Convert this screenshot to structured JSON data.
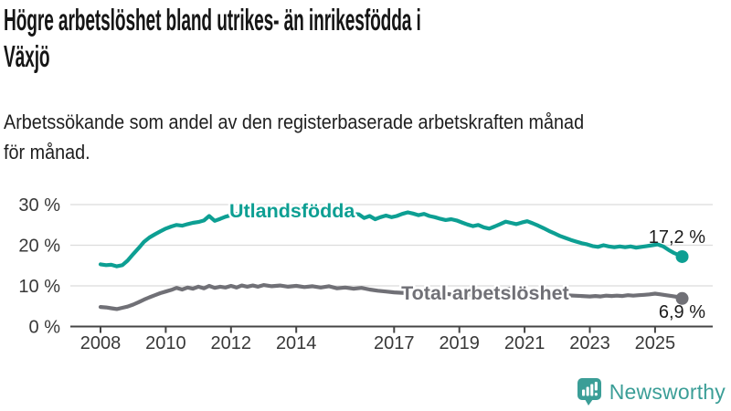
{
  "header": {
    "title_lines": [
      "Högre arbetslöshet bland utrikes- än inrikesfödda i",
      "Växjö"
    ],
    "subtitle_lines": [
      "Arbetssökande som andel av den registerbaserade arbetskraften månad",
      "för månad."
    ]
  },
  "colors": {
    "accent_teal": "#0d9f93",
    "line_gray": "#707076",
    "grid": "#dcdcdc",
    "axis": "#444444",
    "tick_text": "#383838",
    "end_label_text": "#1c1c1c",
    "logo_teal": "#3b9e97"
  },
  "chart_data": {
    "type": "line",
    "title": "Högre arbetslöshet bland utrikes- än inrikesfödda i Växjö",
    "subtitle": "Arbetssökande som andel av den registerbaserade arbetskraften månad för månad.",
    "xlabel": "",
    "ylabel": "",
    "units": "%",
    "grid": true,
    "ylim": [
      0,
      30
    ],
    "xlim": [
      2008,
      2025.83
    ],
    "x_ticks": [
      2008,
      2010,
      2012,
      2014,
      2017,
      2019,
      2021,
      2023,
      2025
    ],
    "y_ticks": [
      {
        "value": 0,
        "label": "0 %"
      },
      {
        "value": 10,
        "label": "10 %"
      },
      {
        "value": 20,
        "label": "20 %"
      },
      {
        "value": 30,
        "label": "30 %"
      }
    ],
    "series": [
      {
        "name": "Utlandsfödda",
        "color": "#0d9f93",
        "end_value": 17.2,
        "end_label": "17,2 %",
        "end_label_position": "above",
        "label_at": [
          2011.95,
          28.4
        ],
        "points": [
          [
            2008.0,
            15.3
          ],
          [
            2008.17,
            15.1
          ],
          [
            2008.33,
            15.2
          ],
          [
            2008.5,
            14.8
          ],
          [
            2008.67,
            15.1
          ],
          [
            2008.83,
            16.2
          ],
          [
            2009.0,
            17.8
          ],
          [
            2009.17,
            19.3
          ],
          [
            2009.33,
            20.8
          ],
          [
            2009.5,
            21.9
          ],
          [
            2009.67,
            22.7
          ],
          [
            2009.83,
            23.4
          ],
          [
            2010.0,
            24.1
          ],
          [
            2010.17,
            24.6
          ],
          [
            2010.33,
            25.0
          ],
          [
            2010.5,
            24.8
          ],
          [
            2010.67,
            25.2
          ],
          [
            2010.83,
            25.5
          ],
          [
            2011.0,
            25.7
          ],
          [
            2011.17,
            26.1
          ],
          [
            2011.33,
            27.2
          ],
          [
            2011.5,
            26.0
          ],
          [
            2011.67,
            26.5
          ],
          [
            2011.83,
            27.0
          ],
          [
            2012.0,
            27.4
          ],
          [
            2012.25,
            27.8
          ],
          [
            2012.5,
            27.6
          ],
          [
            2012.75,
            27.9
          ],
          [
            2013.0,
            28.0
          ],
          [
            2013.25,
            27.6
          ],
          [
            2013.5,
            27.9
          ],
          [
            2013.75,
            27.7
          ],
          [
            2014.0,
            28.0
          ],
          [
            2014.25,
            27.7
          ],
          [
            2014.5,
            27.9
          ],
          [
            2014.75,
            27.6
          ],
          [
            2015.0,
            27.9
          ],
          [
            2015.25,
            27.6
          ],
          [
            2015.5,
            27.8
          ],
          [
            2015.75,
            27.7
          ],
          [
            2015.92,
            27.6
          ],
          [
            2016.08,
            26.7
          ],
          [
            2016.25,
            27.2
          ],
          [
            2016.42,
            26.4
          ],
          [
            2016.58,
            26.9
          ],
          [
            2016.75,
            27.3
          ],
          [
            2016.92,
            26.9
          ],
          [
            2017.08,
            27.2
          ],
          [
            2017.25,
            27.7
          ],
          [
            2017.42,
            28.1
          ],
          [
            2017.58,
            27.8
          ],
          [
            2017.75,
            27.4
          ],
          [
            2017.92,
            27.7
          ],
          [
            2018.08,
            27.2
          ],
          [
            2018.25,
            26.9
          ],
          [
            2018.42,
            26.5
          ],
          [
            2018.58,
            26.2
          ],
          [
            2018.75,
            26.4
          ],
          [
            2018.92,
            26.1
          ],
          [
            2019.08,
            25.6
          ],
          [
            2019.25,
            25.1
          ],
          [
            2019.42,
            24.7
          ],
          [
            2019.58,
            25.0
          ],
          [
            2019.75,
            24.4
          ],
          [
            2019.92,
            24.1
          ],
          [
            2020.08,
            24.6
          ],
          [
            2020.25,
            25.2
          ],
          [
            2020.42,
            25.8
          ],
          [
            2020.58,
            25.5
          ],
          [
            2020.75,
            25.2
          ],
          [
            2020.92,
            25.6
          ],
          [
            2021.08,
            25.9
          ],
          [
            2021.25,
            25.4
          ],
          [
            2021.42,
            24.8
          ],
          [
            2021.58,
            24.2
          ],
          [
            2021.75,
            23.5
          ],
          [
            2021.92,
            22.9
          ],
          [
            2022.08,
            22.3
          ],
          [
            2022.25,
            21.8
          ],
          [
            2022.42,
            21.3
          ],
          [
            2022.58,
            20.9
          ],
          [
            2022.75,
            20.5
          ],
          [
            2022.92,
            20.2
          ],
          [
            2023.08,
            19.8
          ],
          [
            2023.25,
            19.6
          ],
          [
            2023.42,
            20.0
          ],
          [
            2023.58,
            19.7
          ],
          [
            2023.75,
            19.5
          ],
          [
            2023.92,
            19.7
          ],
          [
            2024.08,
            19.5
          ],
          [
            2024.25,
            19.7
          ],
          [
            2024.42,
            19.4
          ],
          [
            2024.58,
            19.6
          ],
          [
            2024.75,
            19.8
          ],
          [
            2024.92,
            20.0
          ],
          [
            2025.08,
            20.2
          ],
          [
            2025.25,
            19.7
          ],
          [
            2025.42,
            18.8
          ],
          [
            2025.58,
            18.1
          ],
          [
            2025.75,
            17.5
          ],
          [
            2025.83,
            17.2
          ]
        ]
      },
      {
        "name": "Total arbetslöshet",
        "color": "#707076",
        "end_value": 6.9,
        "end_label": "6,9 %",
        "end_label_position": "below",
        "label_at": [
          2017.22,
          8.2
        ],
        "points": [
          [
            2008.0,
            4.8
          ],
          [
            2008.17,
            4.7
          ],
          [
            2008.33,
            4.5
          ],
          [
            2008.5,
            4.3
          ],
          [
            2008.67,
            4.6
          ],
          [
            2008.83,
            4.9
          ],
          [
            2009.0,
            5.4
          ],
          [
            2009.17,
            6.0
          ],
          [
            2009.33,
            6.6
          ],
          [
            2009.5,
            7.2
          ],
          [
            2009.67,
            7.7
          ],
          [
            2009.83,
            8.2
          ],
          [
            2010.0,
            8.6
          ],
          [
            2010.17,
            9.0
          ],
          [
            2010.33,
            9.5
          ],
          [
            2010.5,
            9.1
          ],
          [
            2010.67,
            9.6
          ],
          [
            2010.83,
            9.3
          ],
          [
            2011.0,
            9.8
          ],
          [
            2011.17,
            9.4
          ],
          [
            2011.33,
            10.0
          ],
          [
            2011.5,
            9.5
          ],
          [
            2011.67,
            9.8
          ],
          [
            2011.83,
            9.6
          ],
          [
            2012.0,
            10.0
          ],
          [
            2012.17,
            9.6
          ],
          [
            2012.33,
            10.1
          ],
          [
            2012.5,
            9.8
          ],
          [
            2012.67,
            10.1
          ],
          [
            2012.83,
            9.8
          ],
          [
            2013.0,
            10.2
          ],
          [
            2013.25,
            9.9
          ],
          [
            2013.5,
            10.1
          ],
          [
            2013.75,
            9.8
          ],
          [
            2014.0,
            10.0
          ],
          [
            2014.25,
            9.7
          ],
          [
            2014.5,
            9.9
          ],
          [
            2014.75,
            9.6
          ],
          [
            2015.0,
            9.9
          ],
          [
            2015.25,
            9.4
          ],
          [
            2015.5,
            9.6
          ],
          [
            2015.75,
            9.3
          ],
          [
            2016.0,
            9.5
          ],
          [
            2016.25,
            9.1
          ],
          [
            2016.5,
            8.8
          ],
          [
            2016.75,
            8.6
          ],
          [
            2017.0,
            8.4
          ],
          [
            2017.25,
            8.3
          ],
          [
            2017.5,
            8.2
          ],
          [
            2017.75,
            8.3
          ],
          [
            2018.0,
            8.1
          ],
          [
            2018.25,
            8.0
          ],
          [
            2018.5,
            8.1
          ],
          [
            2018.75,
            7.9
          ],
          [
            2019.0,
            8.0
          ],
          [
            2019.25,
            7.8
          ],
          [
            2019.5,
            7.7
          ],
          [
            2019.75,
            7.9
          ],
          [
            2020.0,
            8.2
          ],
          [
            2020.25,
            8.8
          ],
          [
            2020.5,
            9.3
          ],
          [
            2020.75,
            9.1
          ],
          [
            2021.0,
            8.8
          ],
          [
            2021.25,
            8.5
          ],
          [
            2021.5,
            8.2
          ],
          [
            2021.75,
            8.0
          ],
          [
            2022.0,
            7.8
          ],
          [
            2022.25,
            7.7
          ],
          [
            2022.5,
            7.6
          ],
          [
            2022.75,
            7.5
          ],
          [
            2023.0,
            7.4
          ],
          [
            2023.17,
            7.5
          ],
          [
            2023.33,
            7.4
          ],
          [
            2023.5,
            7.6
          ],
          [
            2023.67,
            7.5
          ],
          [
            2023.83,
            7.6
          ],
          [
            2024.0,
            7.5
          ],
          [
            2024.17,
            7.7
          ],
          [
            2024.33,
            7.6
          ],
          [
            2024.5,
            7.7
          ],
          [
            2024.67,
            7.8
          ],
          [
            2024.83,
            7.9
          ],
          [
            2025.0,
            8.1
          ],
          [
            2025.17,
            7.9
          ],
          [
            2025.33,
            7.7
          ],
          [
            2025.5,
            7.5
          ],
          [
            2025.67,
            7.3
          ],
          [
            2025.83,
            6.9
          ]
        ]
      }
    ],
    "legend_position": "inline-labels"
  },
  "footer": {
    "brand_name": "Newsworthy"
  }
}
